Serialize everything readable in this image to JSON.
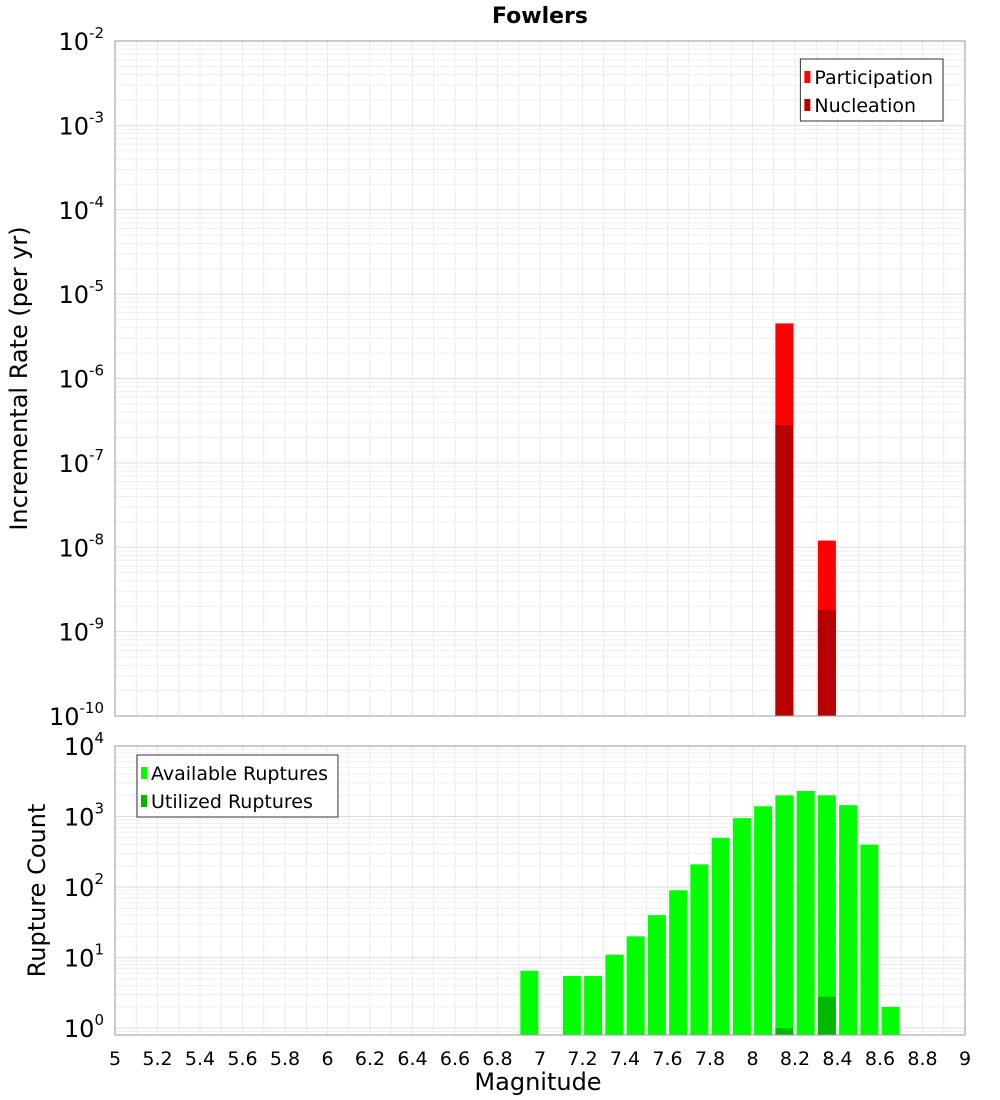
{
  "chart_data": [
    {
      "type": "bar",
      "title": "Fowlers",
      "xlabel": "",
      "ylabel": "Incremental Rate (per yr)",
      "y_scale": "log",
      "ylim": [
        1e-10,
        0.01
      ],
      "xlim": [
        5,
        9
      ],
      "y_ticks": [
        {
          "base": "10",
          "exp": "-10"
        },
        {
          "base": "10",
          "exp": "-9"
        },
        {
          "base": "10",
          "exp": "-8"
        },
        {
          "base": "10",
          "exp": "-7"
        },
        {
          "base": "10",
          "exp": "-6"
        },
        {
          "base": "10",
          "exp": "-5"
        },
        {
          "base": "10",
          "exp": "-4"
        },
        {
          "base": "10",
          "exp": "-3"
        },
        {
          "base": "10",
          "exp": "-2"
        }
      ],
      "grid": true,
      "legend_position": "top-right",
      "series": [
        {
          "name": "Participation",
          "color": "#ff0000",
          "x": [
            8.15,
            8.35
          ],
          "values": [
            4.5e-06,
            1.2e-08
          ]
        },
        {
          "name": "Nucleation",
          "color": "#b80000",
          "x": [
            8.15,
            8.35
          ],
          "values": [
            2.8e-07,
            1.8e-09
          ]
        }
      ]
    },
    {
      "type": "bar",
      "title": "",
      "xlabel": "Magnitude",
      "ylabel": "Rupture Count",
      "y_scale": "log",
      "ylim": [
        0.8,
        10000
      ],
      "xlim": [
        5,
        9
      ],
      "y_ticks": [
        {
          "base": "10",
          "exp": "0"
        },
        {
          "base": "10",
          "exp": "1"
        },
        {
          "base": "10",
          "exp": "2"
        },
        {
          "base": "10",
          "exp": "3"
        },
        {
          "base": "10",
          "exp": "4"
        }
      ],
      "x_ticks": [
        "5",
        "5.2",
        "5.4",
        "5.6",
        "5.8",
        "6",
        "6.2",
        "6.4",
        "6.6",
        "6.8",
        "7",
        "7.2",
        "7.4",
        "7.6",
        "7.8",
        "8",
        "8.2",
        "8.4",
        "8.6",
        "8.8",
        "9"
      ],
      "grid": true,
      "legend_position": "top-left",
      "series": [
        {
          "name": "Available Ruptures",
          "color": "#00ff00",
          "x": [
            6.95,
            7.15,
            7.25,
            7.35,
            7.45,
            7.55,
            7.65,
            7.75,
            7.85,
            7.95,
            8.05,
            8.15,
            8.25,
            8.35,
            8.45,
            8.55,
            8.65
          ],
          "values": [
            6.5,
            5.5,
            5.5,
            11,
            20,
            40,
            90,
            210,
            500,
            950,
            1400,
            2000,
            2300,
            2000,
            1450,
            400,
            2
          ]
        },
        {
          "name": "Utilized Ruptures",
          "color": "#00b800",
          "x": [
            8.15,
            8.35
          ],
          "values": [
            1,
            2.8
          ]
        }
      ]
    }
  ]
}
